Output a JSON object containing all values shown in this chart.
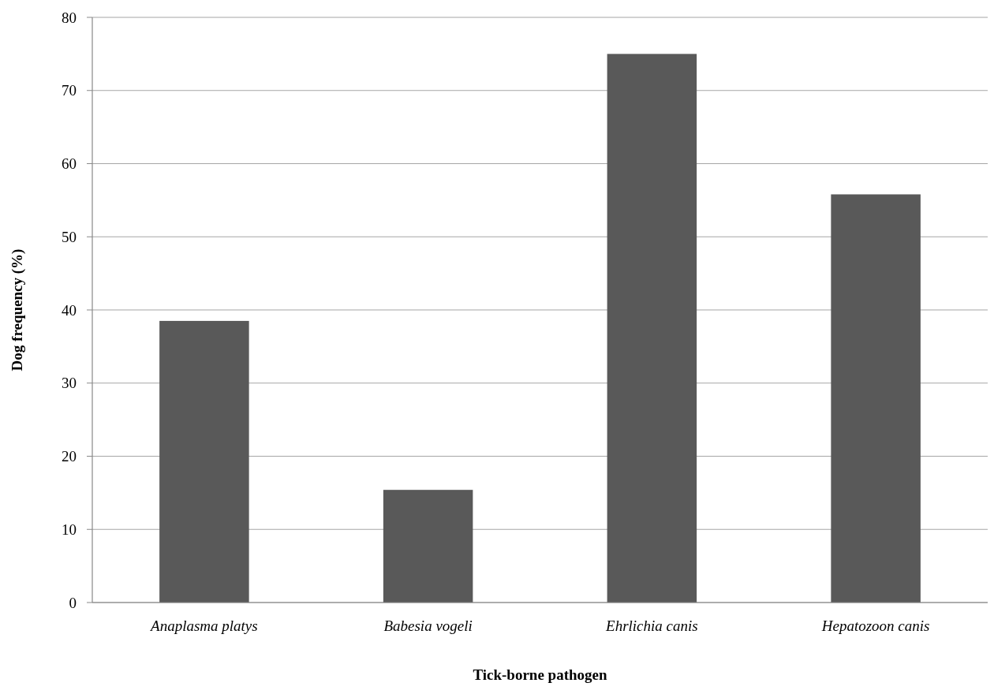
{
  "chart_data": {
    "type": "bar",
    "xlabel": "Tick-borne pathogen",
    "ylabel": "Dog frequency (%)",
    "categories": [
      "Anaplasma platys",
      "Babesia vogeli",
      "Ehrlichia canis",
      "Hepatozoon canis"
    ],
    "values": [
      38.5,
      15.4,
      75.0,
      55.8
    ],
    "color": "#595959",
    "ylim": [
      0,
      80
    ],
    "yticks": [
      0,
      10,
      20,
      30,
      40,
      50,
      60,
      70,
      80
    ],
    "grid": "y"
  }
}
